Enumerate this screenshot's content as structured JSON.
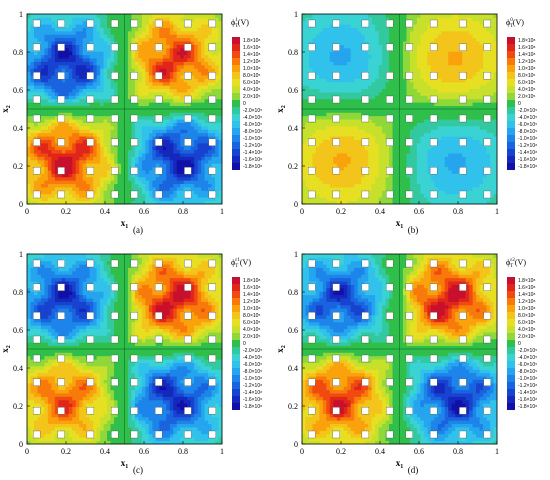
{
  "chart_data": [
    {
      "id": "a",
      "type": "heatmap",
      "subtype": "filled-contour",
      "caption": "(a)",
      "xlabel": "x",
      "xlabel_sub": "1",
      "ylabel": "x",
      "ylabel_sub": "2",
      "xlim": [
        0,
        1
      ],
      "ylim": [
        0,
        1
      ],
      "xticks": [
        "0",
        "0.2",
        "0.4",
        "0.6",
        "0.8",
        "1"
      ],
      "yticks": [
        "0",
        "0.2",
        "0.4",
        "0.6",
        "0.8",
        "1"
      ],
      "legend_title": "ϕ",
      "legend_title_sup": "1",
      "legend_title_sub": "T",
      "legend_unit": "(V)",
      "legend_position": "right",
      "field": {
        "kind": "checkerboard",
        "hotspots": [
          {
            "x": 0.2,
            "y": 0.25,
            "sign": 1,
            "amp": 0.95
          },
          {
            "x": 0.75,
            "y": 0.75,
            "sign": 1,
            "amp": 0.85
          },
          {
            "x": 0.2,
            "y": 0.72,
            "sign": -1,
            "amp": 0.9
          },
          {
            "x": 0.78,
            "y": 0.25,
            "sign": -1,
            "amp": 0.9
          }
        ]
      }
    },
    {
      "id": "b",
      "type": "heatmap",
      "subtype": "filled-contour",
      "caption": "(b)",
      "xlabel": "x",
      "xlabel_sub": "1",
      "ylabel": "x",
      "ylabel_sub": "2",
      "xlim": [
        0,
        1
      ],
      "ylim": [
        0,
        1
      ],
      "xticks": [
        "0",
        "0.2",
        "0.4",
        "0.6",
        "0.8",
        "1"
      ],
      "yticks": [
        "0",
        "0.2",
        "0.4",
        "0.6",
        "0.8",
        "1"
      ],
      "legend_title": "ϕ",
      "legend_title_sup": "0",
      "legend_title_sub": "T",
      "legend_unit": "(V)",
      "legend_position": "right",
      "field": {
        "kind": "smooth",
        "hotspots": [
          {
            "x": 0.22,
            "y": 0.25,
            "sign": 1,
            "amp": 0.55
          },
          {
            "x": 0.77,
            "y": 0.75,
            "sign": 1,
            "amp": 0.55
          },
          {
            "x": 0.22,
            "y": 0.75,
            "sign": -1,
            "amp": 0.45
          },
          {
            "x": 0.77,
            "y": 0.25,
            "sign": -1,
            "amp": 0.45
          }
        ]
      }
    },
    {
      "id": "c",
      "type": "heatmap",
      "subtype": "filled-contour",
      "caption": "(c)",
      "xlabel": "x",
      "xlabel_sub": "1",
      "ylabel": "x",
      "ylabel_sub": "2",
      "xlim": [
        0,
        1
      ],
      "ylim": [
        0,
        1
      ],
      "xticks": [
        "0",
        "0.2",
        "0.4",
        "0.6",
        "0.8",
        "1"
      ],
      "yticks": [
        "0",
        "0.2",
        "0.4",
        "0.6",
        "0.8",
        "1"
      ],
      "legend_title": "ϕ",
      "legend_title_sup": "ε1",
      "legend_title_sub": "T",
      "legend_unit": "(V)",
      "legend_position": "right",
      "field": {
        "kind": "checkerboard",
        "hotspots": [
          {
            "x": 0.2,
            "y": 0.25,
            "sign": 1,
            "amp": 0.75
          },
          {
            "x": 0.75,
            "y": 0.75,
            "sign": 1,
            "amp": 0.95
          },
          {
            "x": 0.2,
            "y": 0.75,
            "sign": -1,
            "amp": 0.85
          },
          {
            "x": 0.75,
            "y": 0.25,
            "sign": -1,
            "amp": 0.85
          }
        ]
      }
    },
    {
      "id": "d",
      "type": "heatmap",
      "subtype": "filled-contour",
      "caption": "(d)",
      "xlabel": "x",
      "xlabel_sub": "1",
      "ylabel": "x",
      "ylabel_sub": "2",
      "xlim": [
        0,
        1
      ],
      "ylim": [
        0,
        1
      ],
      "xticks": [
        "0",
        "0.2",
        "0.4",
        "0.6",
        "0.8",
        "1"
      ],
      "yticks": [
        "0",
        "0.2",
        "0.4",
        "0.6",
        "0.8",
        "1"
      ],
      "legend_title": "ϕ",
      "legend_title_sup": "ε2",
      "legend_title_sub": "T",
      "legend_unit": "(V)",
      "legend_position": "right",
      "field": {
        "kind": "checkerboard",
        "hotspots": [
          {
            "x": 0.2,
            "y": 0.25,
            "sign": 1,
            "amp": 0.85
          },
          {
            "x": 0.75,
            "y": 0.75,
            "sign": 1,
            "amp": 0.95
          },
          {
            "x": 0.2,
            "y": 0.75,
            "sign": -1,
            "amp": 0.8
          },
          {
            "x": 0.78,
            "y": 0.25,
            "sign": -1,
            "amp": 0.85
          }
        ]
      }
    }
  ],
  "legend_levels": [
    "1.8×10⁸",
    "1.6×10⁸",
    "1.4×10⁸",
    "1.2×10⁸",
    "1.0×10⁸",
    "8.0×10⁵",
    "6.0×10⁵",
    "4.0×10⁵",
    "2.0×10⁵",
    "0",
    "-2.0×10⁵",
    "-4.0×10⁵",
    "-6.0×10⁵",
    "-8.0×10⁵",
    "-1.0×10⁸",
    "-1.2×10⁸",
    "-1.4×10⁸",
    "-1.6×10⁸",
    "-1.8×10⁸"
  ],
  "legend_colors": [
    "#c8102e",
    "#e0261a",
    "#f04a10",
    "#f77a0a",
    "#f9a20c",
    "#f3c41a",
    "#e6df22",
    "#c6e02c",
    "#8fd83a",
    "#2fbf4a",
    "#33c9a0",
    "#3ad3d4",
    "#31c2ec",
    "#25a5ee",
    "#1d84ea",
    "#1a63de",
    "#1743cf",
    "#1428be",
    "#1010a8"
  ],
  "inclusion_centers": [
    0.05,
    0.175,
    0.325,
    0.45,
    0.55,
    0.675,
    0.825,
    0.95
  ]
}
